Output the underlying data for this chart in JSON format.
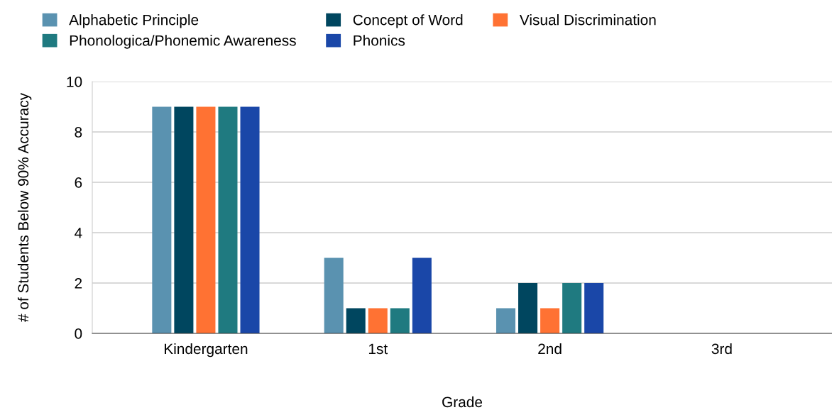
{
  "chart_data": {
    "type": "bar",
    "xlabel": "Grade",
    "ylabel": "# of Students Below 90% Accuracy",
    "categories": [
      "Kindergarten",
      "1st",
      "2nd",
      "3rd"
    ],
    "series": [
      {
        "name": "Alphabetic Principle",
        "color": "#5a92b0",
        "values": [
          9,
          3,
          1,
          0
        ]
      },
      {
        "name": "Concept of Word",
        "color": "#00465f",
        "values": [
          9,
          1,
          2,
          0
        ]
      },
      {
        "name": "Visual Discrimination",
        "color": "#ff7233",
        "values": [
          9,
          1,
          1,
          0
        ]
      },
      {
        "name": "Phonologica/Phonemic Awareness",
        "color": "#1f7a80",
        "values": [
          9,
          1,
          2,
          0
        ]
      },
      {
        "name": "Phonics",
        "color": "#1a47a8",
        "values": [
          9,
          3,
          2,
          0
        ]
      }
    ],
    "ylim": [
      0,
      10
    ],
    "yticks": [
      0,
      2,
      4,
      6,
      8,
      10
    ],
    "grid": "y",
    "legend": "top"
  }
}
